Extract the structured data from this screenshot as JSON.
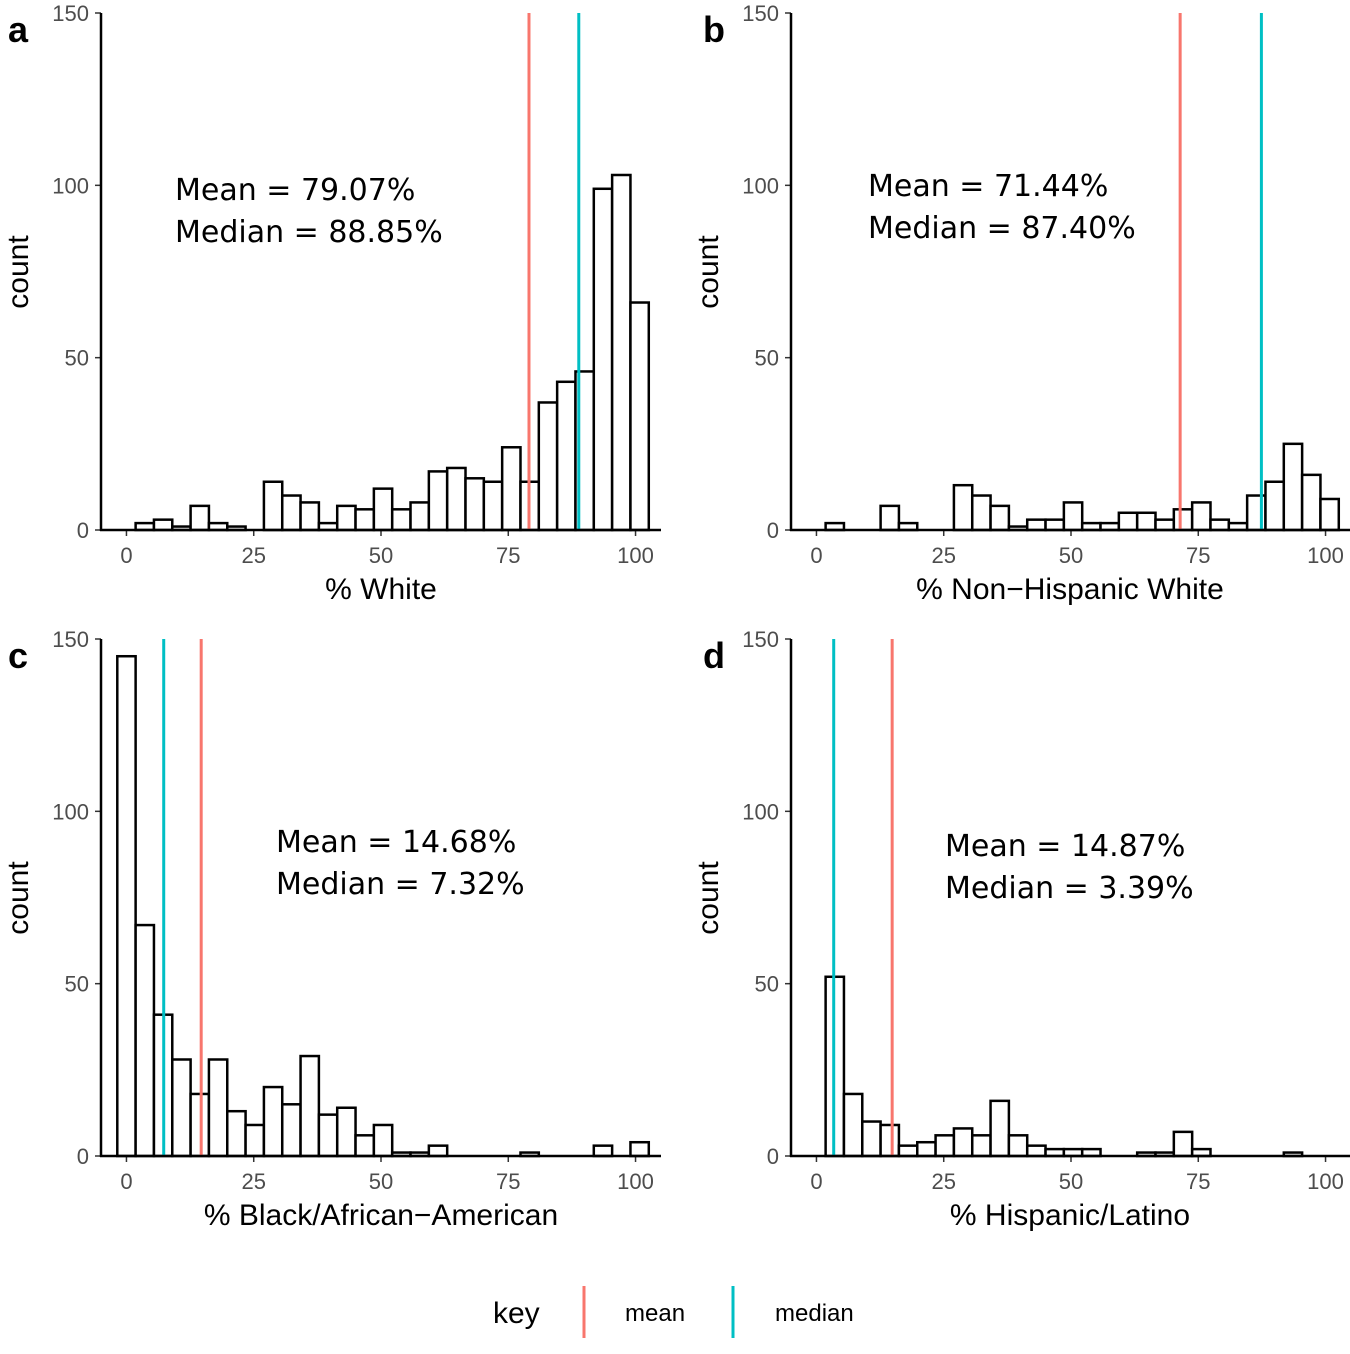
{
  "colors": {
    "mean": "#f8766d",
    "median": "#00bfc4",
    "bar_fill": "#ffffff",
    "bar_stroke": "#000000"
  },
  "legend": {
    "title": "key",
    "items": [
      {
        "label": "mean",
        "color": "#f8766d"
      },
      {
        "label": "median",
        "color": "#00bfc4"
      }
    ]
  },
  "chart_data": [
    {
      "type": "bar",
      "panel": "a",
      "xlabel": "% White",
      "ylabel": "count",
      "xlim": [
        -5,
        105
      ],
      "ylim": [
        0,
        150
      ],
      "x_ticks": [
        0,
        25,
        50,
        75,
        100
      ],
      "y_ticks": [
        0,
        50,
        100,
        150
      ],
      "bin_width": 3.6,
      "bin_start": 1.8,
      "values": [
        2,
        3,
        1,
        7,
        2,
        1,
        0,
        14,
        10,
        8,
        2,
        7,
        6,
        12,
        6,
        8,
        17,
        18,
        15,
        14,
        24,
        14,
        37,
        43,
        46,
        99,
        103,
        66
      ],
      "mean": 79.07,
      "median": 88.85,
      "mean_text": "Mean = 79.07%",
      "median_text": "Median = 88.85%"
    },
    {
      "type": "bar",
      "panel": "b",
      "xlabel": "% Non−Hispanic White",
      "ylabel": "count",
      "xlim": [
        -5,
        105
      ],
      "ylim": [
        0,
        150
      ],
      "x_ticks": [
        0,
        25,
        50,
        75,
        100
      ],
      "y_ticks": [
        0,
        50,
        100,
        150
      ],
      "bin_width": 3.6,
      "bin_start": 1.8,
      "values": [
        2,
        0,
        0,
        7,
        2,
        0,
        0,
        13,
        10,
        7,
        1,
        3,
        3,
        8,
        2,
        2,
        5,
        5,
        3,
        6,
        8,
        3,
        2,
        10,
        14,
        25,
        16,
        9
      ],
      "mean": 71.44,
      "median": 87.4,
      "mean_text": "Mean = 71.44%",
      "median_text": "Median = 87.40%"
    },
    {
      "type": "bar",
      "panel": "c",
      "xlabel": "% Black/African−American",
      "ylabel": "count",
      "xlim": [
        -5,
        105
      ],
      "ylim": [
        0,
        150
      ],
      "x_ticks": [
        0,
        25,
        50,
        75,
        100
      ],
      "y_ticks": [
        0,
        50,
        100,
        150
      ],
      "bin_width": 3.6,
      "bin_start": -1.8,
      "values": [
        145,
        67,
        41,
        28,
        18,
        28,
        13,
        9,
        20,
        15,
        29,
        12,
        14,
        6,
        9,
        1,
        1,
        3,
        0,
        0,
        0,
        0,
        1,
        0,
        0,
        0,
        3,
        0,
        4
      ],
      "mean": 14.68,
      "median": 7.32,
      "mean_text": "Mean = 14.68%",
      "median_text": "Median = 7.32%"
    },
    {
      "type": "bar",
      "panel": "d",
      "xlabel": "% Hispanic/Latino",
      "ylabel": "count",
      "xlim": [
        -5,
        105
      ],
      "ylim": [
        0,
        150
      ],
      "x_ticks": [
        0,
        25,
        50,
        75,
        100
      ],
      "y_ticks": [
        0,
        50,
        100,
        150
      ],
      "bin_width": 3.6,
      "bin_start": 1.8,
      "values": [
        52,
        18,
        10,
        9,
        3,
        4,
        6,
        8,
        6,
        16,
        6,
        3,
        2,
        2,
        2,
        0,
        0,
        1,
        1,
        7,
        2,
        0,
        0,
        0,
        0,
        1,
        0,
        0
      ],
      "mean": 14.87,
      "median": 3.39,
      "mean_text": "Mean = 14.87%",
      "median_text": "Median = 3.39%"
    }
  ]
}
